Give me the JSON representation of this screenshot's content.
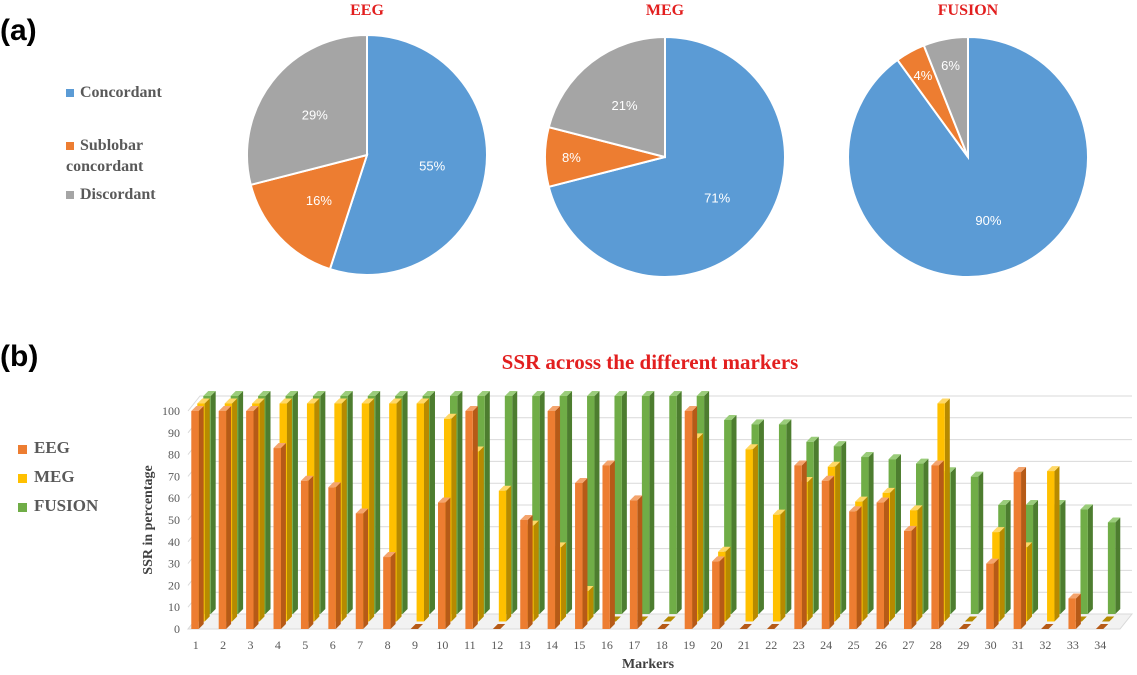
{
  "panel_a_label": "(a)",
  "panel_b_label": "(b)",
  "pie_legend": [
    {
      "label": "Concordant",
      "color": "#5b9bd5"
    },
    {
      "label": "Sublobar concordant",
      "color": "#ed7d31"
    },
    {
      "label": "Discordant",
      "color": "#a5a5a5"
    }
  ],
  "bar_legend": [
    {
      "label": "EEG",
      "color": "#ed7d31"
    },
    {
      "label": "MEG",
      "color": "#ffc000"
    },
    {
      "label": "FUSION",
      "color": "#70ad47"
    }
  ],
  "chart_data": [
    {
      "type": "pie",
      "title": "EEG",
      "slices": [
        {
          "label": "Concordant",
          "value": 55,
          "display": "55%"
        },
        {
          "label": "Sublobar concordant",
          "value": 16,
          "display": "16%"
        },
        {
          "label": "Discordant",
          "value": 29,
          "display": "29%"
        }
      ]
    },
    {
      "type": "pie",
      "title": "MEG",
      "slices": [
        {
          "label": "Concordant",
          "value": 71,
          "display": "71%"
        },
        {
          "label": "Sublobar concordant",
          "value": 8,
          "display": "8%"
        },
        {
          "label": "Discordant",
          "value": 21,
          "display": "21%"
        }
      ]
    },
    {
      "type": "pie",
      "title": "FUSION",
      "slices": [
        {
          "label": "Concordant",
          "value": 90,
          "display": "90%"
        },
        {
          "label": "Sublobar concordant",
          "value": 4,
          "display": "4%"
        },
        {
          "label": "Discordant",
          "value": 6,
          "display": "6%"
        }
      ]
    },
    {
      "type": "bar",
      "title": "SSR across the different markers",
      "xlabel": "Markers",
      "ylabel": "SSR in percentage",
      "ylim": [
        0,
        100
      ],
      "yticks": [
        "0",
        "10",
        "20",
        "30",
        "40",
        "50",
        "60",
        "70",
        "80",
        "90",
        "100"
      ],
      "categories": [
        "1",
        "2",
        "3",
        "4",
        "5",
        "6",
        "7",
        "8",
        "9",
        "10",
        "11",
        "12",
        "13",
        "14",
        "15",
        "16",
        "17",
        "18",
        "19",
        "20",
        "21",
        "22",
        "23",
        "24",
        "25",
        "26",
        "27",
        "28",
        "29",
        "30",
        "31",
        "32",
        "33",
        "34"
      ],
      "series": [
        {
          "name": "EEG",
          "values": [
            100,
            100,
            100,
            83,
            68,
            65,
            53,
            33,
            0,
            58,
            100,
            0,
            50,
            100,
            67,
            75,
            59,
            0,
            100,
            31,
            0,
            0,
            75,
            68,
            54,
            58,
            45,
            75,
            0,
            30,
            72,
            0,
            14,
            0
          ]
        },
        {
          "name": "MEG",
          "values": [
            100,
            100,
            100,
            100,
            100,
            100,
            100,
            100,
            100,
            93,
            78,
            60,
            44,
            34,
            14,
            0,
            0,
            0,
            84,
            32,
            79,
            49,
            64,
            71,
            55,
            59,
            51,
            100,
            0,
            41,
            34,
            69,
            0,
            0
          ]
        },
        {
          "name": "FUSION",
          "values": [
            100,
            100,
            100,
            100,
            100,
            100,
            100,
            100,
            100,
            100,
            100,
            100,
            100,
            100,
            100,
            100,
            100,
            100,
            100,
            89,
            87,
            87,
            79,
            77,
            72,
            71,
            69,
            65,
            63,
            50,
            50,
            50,
            48,
            42
          ]
        }
      ],
      "grid": true,
      "legend_position": "left"
    }
  ]
}
